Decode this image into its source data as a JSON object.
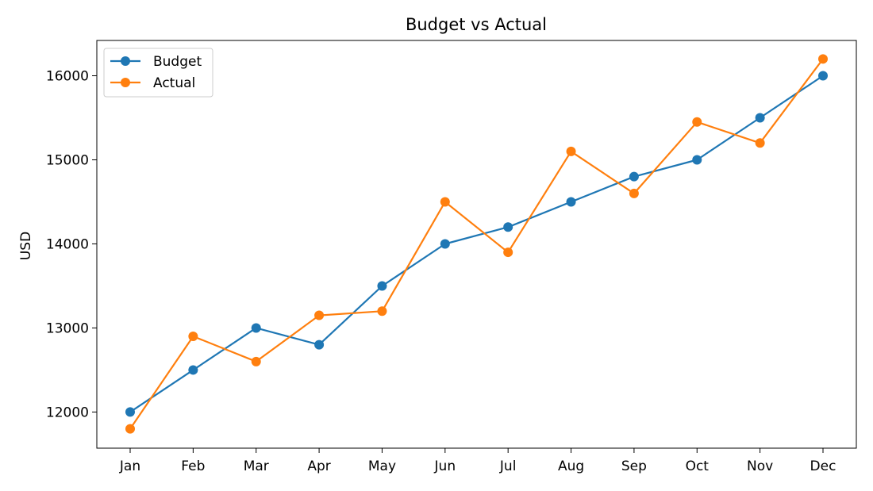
{
  "chart_data": {
    "type": "line",
    "title": "Budget vs Actual",
    "xlabel": "",
    "ylabel": "USD",
    "categories": [
      "Jan",
      "Feb",
      "Mar",
      "Apr",
      "May",
      "Jun",
      "Jul",
      "Aug",
      "Sep",
      "Oct",
      "Nov",
      "Dec"
    ],
    "series": [
      {
        "name": "Budget",
        "color": "#1f77b4",
        "marker": "circle",
        "values": [
          12000,
          12500,
          13000,
          12800,
          13500,
          14000,
          14200,
          14500,
          14800,
          15000,
          15500,
          16000
        ]
      },
      {
        "name": "Actual",
        "color": "#ff7f0e",
        "marker": "circle",
        "values": [
          11800,
          12900,
          12600,
          13150,
          13200,
          14500,
          13900,
          15100,
          14600,
          15450,
          15200,
          16200
        ]
      }
    ],
    "ylim": [
      11570,
      16420
    ],
    "yticks": [
      12000,
      13000,
      14000,
      15000,
      16000
    ],
    "grid": false,
    "legend_position": "upper left"
  }
}
